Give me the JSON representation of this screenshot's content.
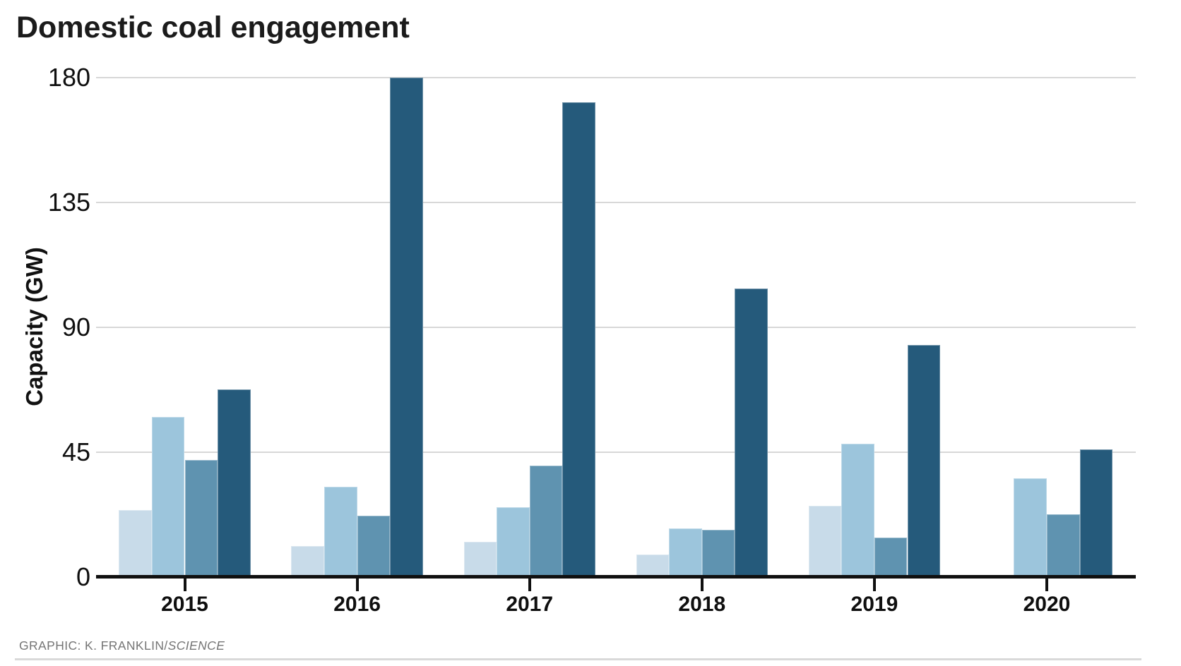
{
  "title": "Domestic coal engagement",
  "y_axis_title": "Capacity (GW)",
  "caption": {
    "prefix": "GRAPHIC: K. FRANKLIN/",
    "source": "SCIENCE"
  },
  "chart_data": {
    "type": "bar",
    "title": "Domestic coal engagement",
    "xlabel": "",
    "ylabel": "Capacity (GW)",
    "categories": [
      "2015",
      "2016",
      "2017",
      "2018",
      "2019",
      "2020"
    ],
    "series": [
      {
        "name": "bar-shade-1-lightest",
        "color": "#c8dbe9",
        "values": [
          24,
          11,
          12.5,
          8,
          25.5,
          0
        ]
      },
      {
        "name": "bar-shade-2-light",
        "color": "#9cc5dc",
        "values": [
          57.5,
          32.5,
          25,
          17.5,
          48,
          35.5
        ]
      },
      {
        "name": "bar-shade-3-medium",
        "color": "#5f93b0",
        "values": [
          42,
          22,
          40,
          17,
          14,
          22.5
        ]
      },
      {
        "name": "bar-shade-4-dark",
        "color": "#255a7b",
        "values": [
          67.5,
          180,
          171,
          104,
          83.5,
          46
        ]
      }
    ],
    "yticks": [
      0,
      45,
      90,
      135,
      180
    ],
    "ylim": [
      0,
      180
    ],
    "grid": true,
    "legend": "none",
    "bar_gap_within_group": 0
  },
  "colors": {
    "background": "#ffffff",
    "gridline": "#d8d8d8",
    "axis": "#101010",
    "title_text": "#1b1b1b",
    "tick_text": "#0f0f0f",
    "caption_text": "#757575",
    "bottom_rule": "#d9d9d9"
  }
}
